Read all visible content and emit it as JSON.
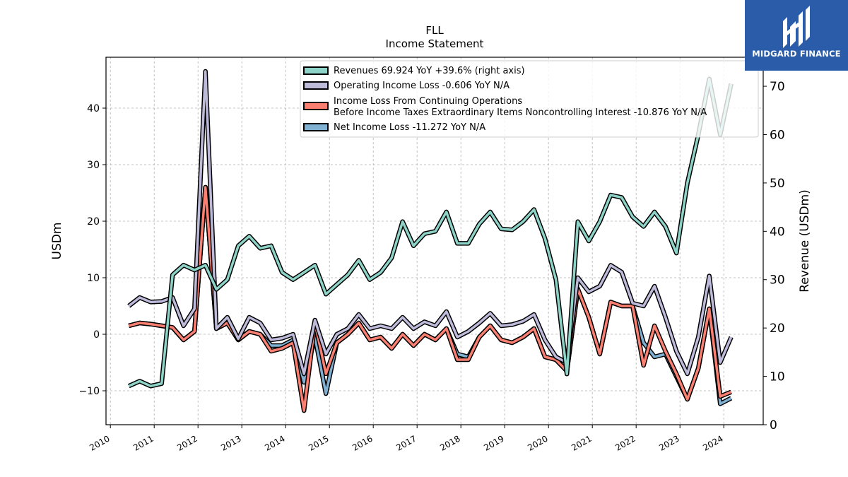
{
  "brand": {
    "name": "MIDGARD FINANCE",
    "bg_color": "#2a5caa"
  },
  "chart_data": {
    "type": "line",
    "title": "FLL",
    "subtitle": "Income Statement",
    "ylabel": "USDm",
    "y2label": "Revenue (USDm)",
    "ylim": [
      -16,
      49
    ],
    "y2lim": [
      0,
      76
    ],
    "yticks": [
      -10,
      0,
      10,
      20,
      30,
      40
    ],
    "ytick_labels": [
      "−10",
      "0",
      "10",
      "20",
      "30",
      "40"
    ],
    "y2ticks": [
      0,
      10,
      20,
      30,
      40,
      50,
      60,
      70
    ],
    "xlim": [
      2009.9,
      2024.9
    ],
    "xticks": [
      "2010",
      "2011",
      "2012",
      "2013",
      "2014",
      "2015",
      "2016",
      "2017",
      "2018",
      "2019",
      "2020",
      "2021",
      "2022",
      "2023",
      "2024"
    ],
    "grid": true,
    "legend_position": "top-center",
    "x": [
      2010.42,
      2010.67,
      2010.92,
      2011.17,
      2011.42,
      2011.67,
      2011.92,
      2012.17,
      2012.42,
      2012.67,
      2012.92,
      2013.17,
      2013.42,
      2013.67,
      2013.92,
      2014.17,
      2014.42,
      2014.67,
      2014.92,
      2015.17,
      2015.42,
      2015.67,
      2015.92,
      2016.17,
      2016.42,
      2016.67,
      2016.92,
      2017.17,
      2017.42,
      2017.67,
      2017.92,
      2018.17,
      2018.42,
      2018.67,
      2018.92,
      2019.17,
      2019.42,
      2019.67,
      2019.92,
      2020.17,
      2020.42,
      2020.67,
      2020.92,
      2021.17,
      2021.42,
      2021.67,
      2021.92,
      2022.17,
      2022.42,
      2022.67,
      2022.92,
      2023.17,
      2023.42,
      2023.67,
      2023.92,
      2024.17,
      2024.42
    ],
    "series": [
      {
        "name": "Revenues  69.924 YoY +39.6% (right axis)",
        "axis": "right",
        "color": "#8dd3c7",
        "values": [
          8,
          9,
          8,
          8.5,
          31,
          33,
          32,
          33,
          28,
          30,
          37,
          39,
          36.5,
          37,
          31.5,
          30,
          31.5,
          33,
          27,
          29,
          31,
          34,
          30,
          31.5,
          34.5,
          42,
          37,
          39.5,
          40,
          44,
          37.5,
          37.5,
          41.5,
          44,
          40.5,
          40.3,
          42,
          44.5,
          38.5,
          30,
          10.5,
          42,
          38,
          42,
          47.5,
          47,
          43,
          41,
          44,
          41,
          35.5,
          50,
          60,
          71.5,
          60,
          70.5,
          null
        ]
      },
      {
        "name": "Operating Income Loss  -0.606 YoY N/A",
        "axis": "left",
        "color": "#bebada",
        "values": [
          5,
          6.5,
          5.7,
          5.8,
          6.5,
          1.5,
          4.5,
          46.5,
          1,
          3,
          -0.8,
          3,
          2,
          -1,
          -0.7,
          0,
          -7,
          2.5,
          -3.5,
          0,
          1,
          3.5,
          1,
          1.5,
          1,
          3,
          1,
          2.2,
          1.5,
          4,
          -0.5,
          0.5,
          2,
          3.7,
          1.5,
          1.7,
          2.3,
          3.5,
          -1,
          -4,
          -5,
          10,
          7.5,
          8.5,
          12.2,
          11,
          5.5,
          5,
          8.5,
          3,
          -3,
          -7,
          -0.5,
          10.3,
          -5,
          -0.5,
          null
        ]
      },
      {
        "name": "Income Loss From Continuing Operations\nBefore Income Taxes Extraordinary Items Noncontrolling Interest  -10.876 YoY N/A",
        "axis": "left",
        "color": "#fb8072",
        "values": [
          1.5,
          2,
          1.8,
          1.5,
          1.2,
          -1,
          0.5,
          26,
          1,
          2,
          -1,
          0.5,
          0,
          -3,
          -2.5,
          -1.5,
          -13.5,
          2,
          -7,
          -1.5,
          0,
          2,
          -1,
          -0.5,
          -2.5,
          0,
          -2,
          0,
          -1,
          1,
          -4.5,
          -4.5,
          -0.5,
          1.5,
          -1,
          -1.5,
          -0.5,
          1,
          -4,
          -4.5,
          -6.5,
          8,
          3,
          -3.5,
          5.7,
          5,
          5,
          -5.5,
          1.5,
          -3,
          -7,
          -11.5,
          -6,
          4.5,
          -11,
          -10.2,
          null
        ]
      },
      {
        "name": "Net Income Loss  -11.272 YoY N/A",
        "axis": "left",
        "color": "#80b1d3",
        "values": [
          1.5,
          2,
          1.8,
          1.5,
          1.2,
          -1,
          0.5,
          26,
          1,
          2,
          -1,
          0.5,
          0,
          -2,
          -2,
          -1,
          -8.5,
          -0.5,
          -10.5,
          -1.5,
          0,
          2,
          -1,
          -0.5,
          -2.5,
          0,
          -2,
          0,
          -1,
          1,
          -3.5,
          -4,
          -0.5,
          1.5,
          -1,
          -1.5,
          -0.5,
          1,
          -4,
          -4.5,
          -6.5,
          8,
          3,
          -3.5,
          5.7,
          5,
          5,
          -1.5,
          -4,
          -3.5,
          -7.5,
          -11.5,
          -6,
          4.5,
          -12.3,
          -11.3,
          null
        ]
      }
    ]
  }
}
